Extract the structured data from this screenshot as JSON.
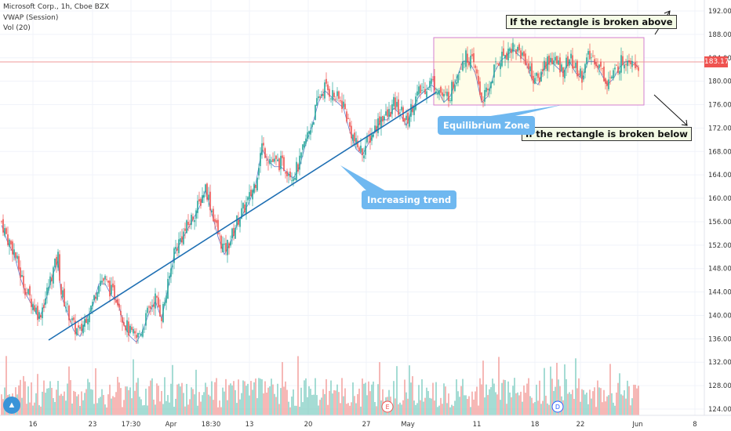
{
  "header": {
    "symbol_line": "Microsoft Corp., 1h, Cboe BZX",
    "vwap_line": "VWAP (Session)",
    "vol_line": "Vol (20)"
  },
  "current_price": "183.17",
  "annotations": {
    "broken_above": "If the rectangle is broken above",
    "broken_below": "If the rectangle is broken below",
    "equilibrium": "Equilibrium Zone",
    "trend": "Increasing trend"
  },
  "event_markers": [
    "E",
    "D"
  ],
  "colors": {
    "up": "#26a69a",
    "down": "#ef5350",
    "trendline": "#1e6fb3",
    "zone_fill": "#fffde8",
    "zone_border": "#d37fd1",
    "callout": "#6fb8f0",
    "price_line": "#ef9a9a"
  },
  "chart_data": {
    "type": "candlestick",
    "y_axis_ticks": [
      "124.00",
      "128.00",
      "132.00",
      "136.00",
      "140.00",
      "144.00",
      "148.00",
      "152.00",
      "156.00",
      "160.00",
      "164.00",
      "168.00",
      "172.00",
      "176.00",
      "180.00",
      "184.00",
      "188.00",
      "192.00"
    ],
    "ylim": [
      122,
      194
    ],
    "x_axis_ticks": [
      "16",
      "23",
      "17:30",
      "Apr",
      "18:30",
      "13",
      "20",
      "27",
      "May",
      "11",
      "18",
      "22",
      "Jun",
      "8"
    ],
    "approx_close_path": [
      [
        0,
        156
      ],
      [
        4,
        153
      ],
      [
        8,
        151
      ],
      [
        12,
        147
      ],
      [
        16,
        144
      ],
      [
        20,
        142
      ],
      [
        24,
        140
      ],
      [
        28,
        143
      ],
      [
        32,
        147
      ],
      [
        36,
        150
      ],
      [
        38,
        144
      ],
      [
        42,
        141
      ],
      [
        46,
        138
      ],
      [
        50,
        137
      ],
      [
        54,
        140
      ],
      [
        58,
        142
      ],
      [
        62,
        146
      ],
      [
        66,
        146
      ],
      [
        70,
        144
      ],
      [
        74,
        143
      ],
      [
        78,
        139
      ],
      [
        82,
        137
      ],
      [
        86,
        136
      ],
      [
        90,
        138
      ],
      [
        94,
        141
      ],
      [
        98,
        143
      ],
      [
        102,
        140
      ],
      [
        106,
        145
      ],
      [
        110,
        151
      ],
      [
        114,
        153
      ],
      [
        118,
        155
      ],
      [
        122,
        157
      ],
      [
        126,
        159
      ],
      [
        130,
        162
      ],
      [
        134,
        158
      ],
      [
        138,
        154
      ],
      [
        142,
        151
      ],
      [
        146,
        153
      ],
      [
        150,
        156
      ],
      [
        154,
        158
      ],
      [
        158,
        160
      ],
      [
        162,
        163
      ],
      [
        166,
        169
      ],
      [
        170,
        167
      ],
      [
        174,
        166
      ],
      [
        178,
        166
      ],
      [
        182,
        165
      ],
      [
        186,
        164
      ],
      [
        190,
        166
      ],
      [
        194,
        170
      ],
      [
        198,
        173
      ],
      [
        202,
        177
      ],
      [
        206,
        179
      ],
      [
        210,
        178
      ],
      [
        214,
        177
      ],
      [
        218,
        176
      ],
      [
        222,
        172
      ],
      [
        226,
        169
      ],
      [
        230,
        168
      ],
      [
        234,
        170
      ],
      [
        238,
        172
      ],
      [
        242,
        174
      ],
      [
        246,
        174
      ],
      [
        250,
        176
      ],
      [
        254,
        175
      ],
      [
        258,
        173
      ],
      [
        262,
        176
      ],
      [
        266,
        178
      ],
      [
        270,
        179
      ],
      [
        274,
        180
      ],
      [
        278,
        179
      ],
      [
        282,
        177
      ],
      [
        286,
        178
      ],
      [
        290,
        181
      ],
      [
        294,
        184
      ],
      [
        298,
        184
      ],
      [
        302,
        182
      ],
      [
        306,
        177
      ],
      [
        310,
        178
      ],
      [
        314,
        182
      ],
      [
        318,
        184
      ],
      [
        322,
        185
      ],
      [
        326,
        186
      ],
      [
        330,
        185
      ],
      [
        334,
        184
      ],
      [
        338,
        181
      ],
      [
        342,
        180
      ],
      [
        346,
        183
      ],
      [
        350,
        184
      ],
      [
        354,
        183
      ],
      [
        358,
        182
      ],
      [
        362,
        184
      ],
      [
        366,
        182
      ],
      [
        370,
        181
      ],
      [
        374,
        184
      ],
      [
        378,
        184
      ],
      [
        382,
        182
      ],
      [
        386,
        180
      ],
      [
        390,
        181
      ],
      [
        394,
        183
      ],
      [
        398,
        184
      ],
      [
        402,
        184
      ],
      [
        406,
        183
      ]
    ]
  }
}
